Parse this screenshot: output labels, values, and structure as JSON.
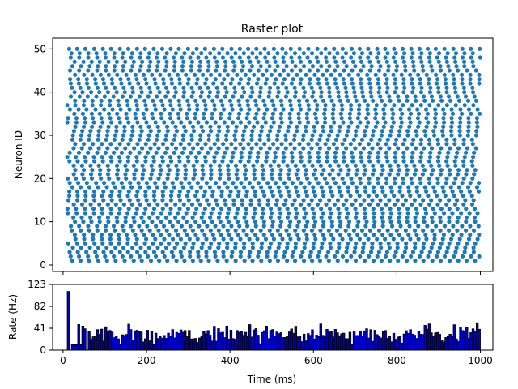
{
  "chart_data": [
    {
      "type": "scatter",
      "title": "Raster plot",
      "xlabel": "",
      "ylabel": "Neuron ID",
      "xlim": [
        -25,
        1030
      ],
      "ylim": [
        -1.5,
        52.5
      ],
      "xticks": [
        0,
        200,
        400,
        600,
        800,
        1000
      ],
      "xtick_labels": [],
      "yticks": [
        0,
        10,
        20,
        30,
        40,
        50
      ],
      "ytick_labels": [
        "0",
        "10",
        "20",
        "30",
        "40",
        "50"
      ],
      "neurons": 50,
      "spike_interval_ms": [
        19,
        22
      ],
      "first_spike_ms": [
        10,
        30
      ],
      "time_range_ms": [
        10,
        1000
      ],
      "marker_color": "#1f77b4"
    },
    {
      "type": "bar",
      "title": "",
      "xlabel": "Time (ms)",
      "ylabel": "Rate (Hz)",
      "xlim": [
        -25,
        1030
      ],
      "ylim": [
        0,
        123
      ],
      "xticks": [
        0,
        200,
        400,
        600,
        800,
        1000
      ],
      "xtick_labels": [
        "0",
        "200",
        "400",
        "600",
        "800",
        "1000"
      ],
      "yticks": [
        0,
        41,
        82,
        123
      ],
      "ytick_labels": [
        "0",
        "41",
        "82",
        "123"
      ],
      "bin_width_ms": 5,
      "bin_start_ms": 10,
      "first_bins_hz": [
        110,
        0,
        10,
        10,
        10,
        48,
        10,
        45,
        40,
        0
      ],
      "typical_rate_hz": [
        20,
        40
      ],
      "bar_color": "#0000cd",
      "edge_color": "#000000"
    }
  ]
}
